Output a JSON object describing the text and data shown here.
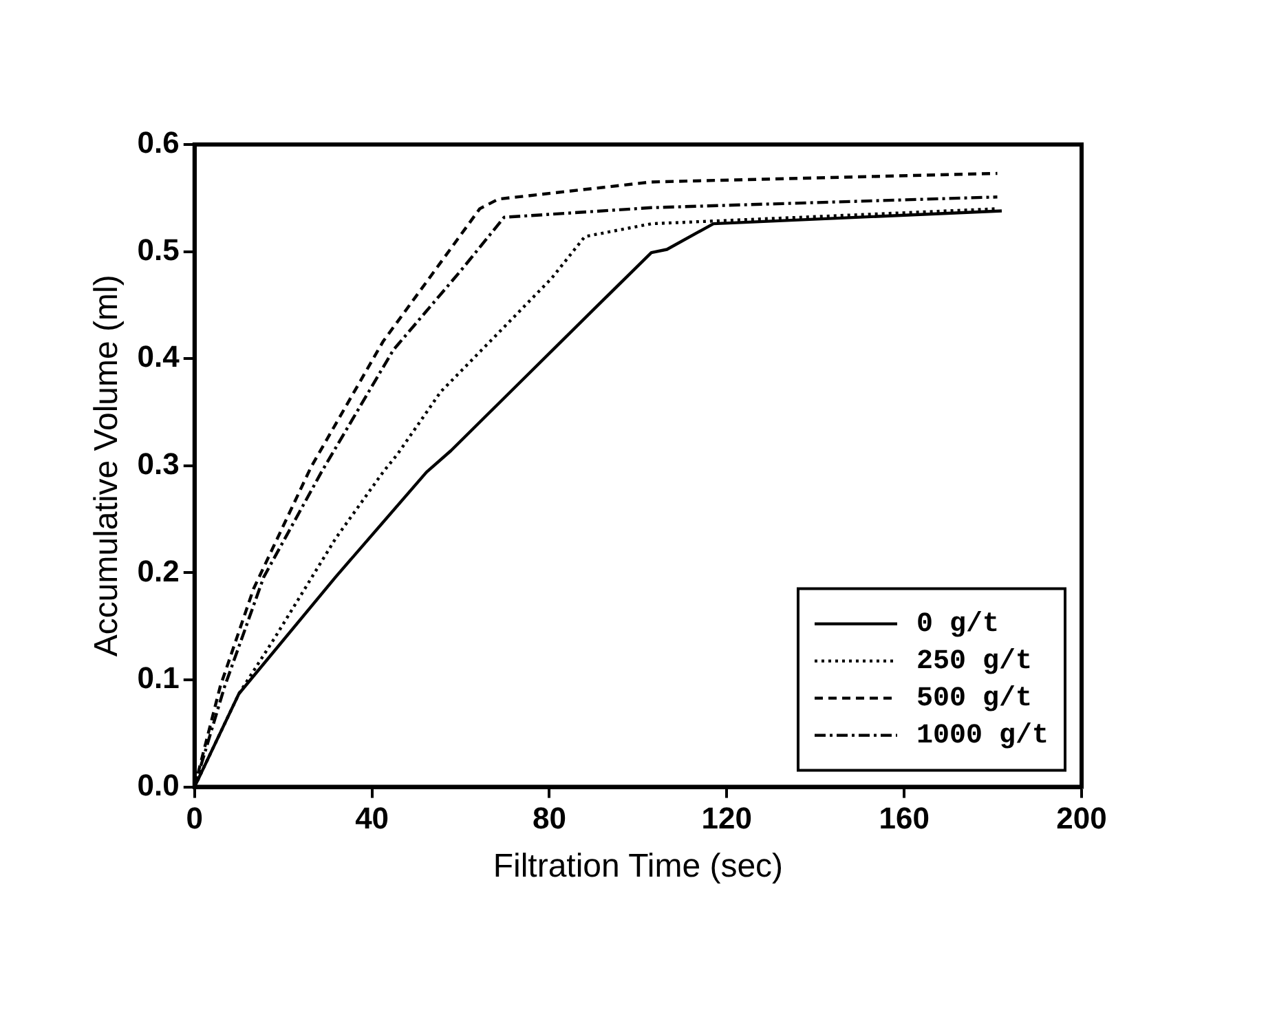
{
  "chart_data": {
    "type": "line",
    "xlabel": "Filtration Time (sec)",
    "ylabel": "Accumulative Volume (ml)",
    "xlim": [
      0,
      200
    ],
    "xticks": [
      0,
      40,
      80,
      120,
      160,
      200
    ],
    "ylim": [
      0,
      0.6
    ],
    "yticks": [
      {
        "value": 0,
        "label": "0.0"
      },
      0.1,
      0.2,
      0.3,
      0.4,
      0.5,
      0.6
    ],
    "grid": false,
    "legend": "bottom right",
    "marker": "none",
    "series": [
      {
        "name": "0 g/t",
        "color": "#000000",
        "line_style": "solid",
        "x": [
          0,
          10,
          31.8,
          52.3,
          57.8,
          90,
          103,
          106.5,
          117,
          182
        ],
        "values": [
          0,
          0.087,
          0.196,
          0.294,
          0.314,
          0.446,
          0.499,
          0.502,
          0.526,
          0.538
        ]
      },
      {
        "name": "250 g/t",
        "color": "#000000",
        "line_style": "dotted",
        "x": [
          0,
          10,
          17.9,
          31.8,
          42.5,
          45.8,
          55.5,
          68.5,
          80.5,
          88,
          103,
          181
        ],
        "values": [
          0,
          0.087,
          0.138,
          0.232,
          0.294,
          0.311,
          0.369,
          0.424,
          0.475,
          0.514,
          0.526,
          0.54
        ]
      },
      {
        "name": "500 g/t",
        "color": "#000000",
        "line_style": "dashed",
        "x": [
          0,
          5.8,
          13.3,
          26.3,
          42.5,
          53.6,
          64.3,
          68.5,
          103,
          181
        ],
        "values": [
          0,
          0.094,
          0.185,
          0.299,
          0.416,
          0.479,
          0.54,
          0.549,
          0.565,
          0.573
        ]
      },
      {
        "name": "1000 g/t",
        "color": "#000000",
        "line_style": "dashdot",
        "x": [
          0,
          6.8,
          15.6,
          28.6,
          44.8,
          60,
          69.8,
          103,
          181
        ],
        "values": [
          0,
          0.094,
          0.196,
          0.294,
          0.408,
          0.482,
          0.532,
          0.541,
          0.551
        ]
      }
    ]
  }
}
